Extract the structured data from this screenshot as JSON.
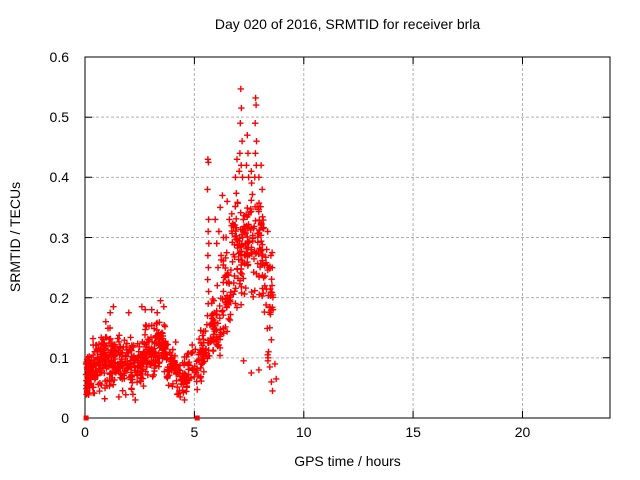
{
  "chart_data": {
    "type": "scatter",
    "title": "Day 020 of 2016, SRMTID for receiver brla",
    "xlabel": "GPS time / hours",
    "ylabel": "SRMTID / TECUs",
    "xlim": [
      0,
      24
    ],
    "ylim": [
      0,
      0.6
    ],
    "x_ticks": [
      0,
      5,
      10,
      15,
      20
    ],
    "x_tick_labels": [
      "0",
      "5",
      "10",
      "15",
      "20"
    ],
    "y_ticks": [
      0,
      0.1,
      0.2,
      0.3,
      0.4,
      0.5,
      0.6
    ],
    "y_tick_labels": [
      "0",
      "0.1",
      "0.2",
      "0.3",
      "0.4",
      "0.5",
      "0.6"
    ],
    "grid": true,
    "legend": null,
    "marker": "plus",
    "marker_color": "#ff0000",
    "seed": 77,
    "bands_key": [
      "x_start",
      "x_end",
      "y_center",
      "y_halfspread",
      "count"
    ],
    "bands": [
      [
        0.05,
        0.3,
        0.075,
        0.045,
        70
      ],
      [
        0.3,
        0.7,
        0.085,
        0.05,
        60
      ],
      [
        0.7,
        1.2,
        0.1,
        0.055,
        70
      ],
      [
        1.2,
        1.7,
        0.095,
        0.05,
        60
      ],
      [
        1.7,
        2.2,
        0.085,
        0.05,
        60
      ],
      [
        2.2,
        2.7,
        0.09,
        0.045,
        55
      ],
      [
        2.7,
        3.2,
        0.11,
        0.05,
        60
      ],
      [
        3.2,
        3.7,
        0.12,
        0.05,
        65
      ],
      [
        3.7,
        4.2,
        0.085,
        0.05,
        50
      ],
      [
        4.2,
        4.7,
        0.07,
        0.04,
        40
      ],
      [
        4.7,
        5.2,
        0.09,
        0.045,
        32
      ],
      [
        5.2,
        5.7,
        0.11,
        0.05,
        45
      ],
      [
        5.7,
        6.2,
        0.15,
        0.06,
        50
      ],
      [
        6.2,
        6.7,
        0.2,
        0.08,
        50
      ],
      [
        6.7,
        7.2,
        0.28,
        0.11,
        60
      ],
      [
        7.2,
        7.7,
        0.3,
        0.1,
        60
      ],
      [
        7.7,
        8.2,
        0.28,
        0.09,
        55
      ],
      [
        8.2,
        8.6,
        0.22,
        0.08,
        30
      ]
    ],
    "points": [
      [
        5.62,
        0.43
      ],
      [
        5.64,
        0.425
      ],
      [
        5.6,
        0.38
      ],
      [
        5.65,
        0.33
      ],
      [
        5.63,
        0.31
      ],
      [
        5.66,
        0.29
      ],
      [
        5.62,
        0.27
      ],
      [
        5.64,
        0.25
      ],
      [
        5.61,
        0.23
      ],
      [
        5.65,
        0.21
      ],
      [
        5.63,
        0.19
      ],
      [
        5.6,
        0.17
      ],
      [
        5.95,
        0.33
      ],
      [
        6.02,
        0.29
      ],
      [
        6.08,
        0.25
      ],
      [
        6.12,
        0.31
      ],
      [
        6.18,
        0.35
      ],
      [
        6.28,
        0.37
      ],
      [
        6.33,
        0.3
      ],
      [
        6.05,
        0.22
      ],
      [
        6.22,
        0.27
      ],
      [
        7.12,
        0.547
      ],
      [
        7.15,
        0.515
      ],
      [
        7.1,
        0.49
      ],
      [
        7.18,
        0.46
      ],
      [
        7.08,
        0.44
      ],
      [
        7.14,
        0.42
      ],
      [
        7.2,
        0.4
      ],
      [
        7.05,
        0.41
      ],
      [
        7.42,
        0.47
      ],
      [
        7.45,
        0.44
      ],
      [
        7.38,
        0.42
      ],
      [
        7.48,
        0.4
      ],
      [
        7.8,
        0.532
      ],
      [
        7.82,
        0.52
      ],
      [
        7.78,
        0.49
      ],
      [
        7.84,
        0.46
      ],
      [
        7.79,
        0.44
      ],
      [
        7.83,
        0.42
      ],
      [
        7.76,
        0.4
      ],
      [
        6.88,
        0.4
      ],
      [
        6.95,
        0.43
      ],
      [
        7.6,
        0.41
      ],
      [
        7.95,
        0.4
      ],
      [
        8.05,
        0.42
      ],
      [
        8.1,
        0.38
      ],
      [
        6.5,
        0.36
      ],
      [
        6.6,
        0.33
      ],
      [
        6.45,
        0.3
      ],
      [
        7.25,
        0.095
      ],
      [
        7.6,
        0.075
      ],
      [
        7.95,
        0.08
      ],
      [
        8.35,
        0.105
      ],
      [
        8.37,
        0.1
      ],
      [
        8.39,
        0.11
      ],
      [
        8.36,
        0.095
      ],
      [
        8.45,
        0.085
      ],
      [
        8.52,
        0.06
      ],
      [
        8.57,
        0.045
      ],
      [
        8.68,
        0.09
      ],
      [
        8.74,
        0.065
      ],
      [
        1.3,
        0.185
      ],
      [
        2.0,
        0.175
      ],
      [
        1.15,
        0.175
      ],
      [
        0.95,
        0.16
      ],
      [
        2.6,
        0.185
      ],
      [
        2.75,
        0.18
      ],
      [
        3.05,
        0.18
      ],
      [
        3.45,
        0.195
      ],
      [
        3.6,
        0.185
      ],
      [
        3.3,
        0.175
      ],
      [
        2.3,
        0.03
      ],
      [
        4.35,
        0.035
      ],
      [
        4.55,
        0.03
      ],
      [
        1.55,
        0.035
      ],
      [
        0.9,
        0.032
      ],
      [
        8.3,
        0.28
      ],
      [
        8.35,
        0.31
      ],
      [
        8.42,
        0.25
      ],
      [
        8.5,
        0.27
      ],
      [
        8.55,
        0.22
      ],
      [
        8.6,
        0.18
      ],
      [
        8.45,
        0.15
      ],
      [
        8.52,
        0.13
      ]
    ],
    "zero_squares": [
      [
        0.05,
        0
      ],
      [
        5.13,
        0
      ]
    ]
  }
}
